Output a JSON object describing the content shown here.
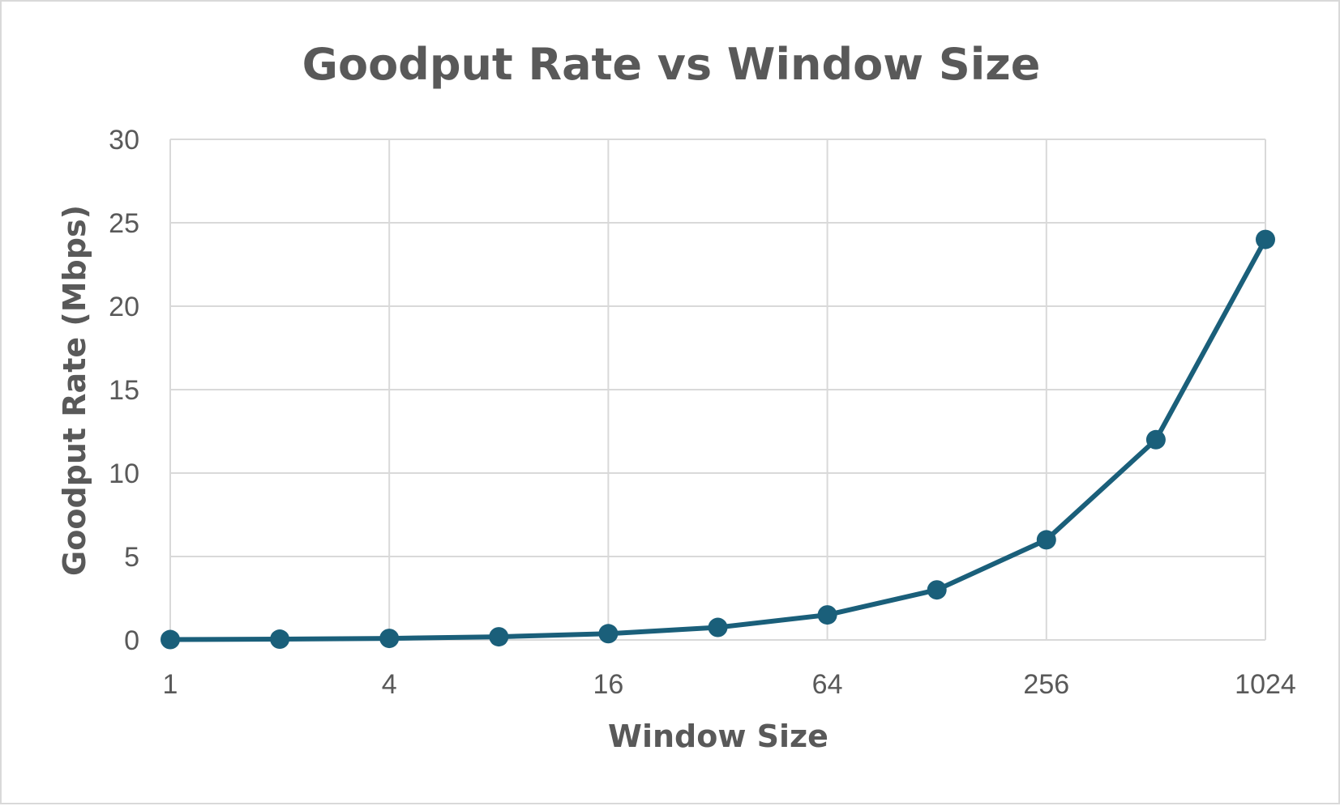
{
  "chart_data": {
    "type": "line",
    "title": "Goodput Rate vs Window Size",
    "xlabel": "Window Size",
    "ylabel": "Goodput Rate (Mbps)",
    "x_scale": "log2",
    "xlim": [
      1,
      1024
    ],
    "ylim": [
      0,
      30
    ],
    "x_ticks": [
      "1",
      "4",
      "16",
      "64",
      "256",
      "1024"
    ],
    "y_ticks": [
      "0",
      "5",
      "10",
      "15",
      "20",
      "25",
      "30"
    ],
    "grid": true,
    "legend": "none",
    "x": [
      1,
      2,
      4,
      8,
      16,
      32,
      64,
      128,
      256,
      512,
      1024
    ],
    "series": [
      {
        "values": [
          0.023,
          0.047,
          0.094,
          0.19,
          0.375,
          0.75,
          1.5,
          3.0,
          6.0,
          12.0,
          24.0
        ],
        "color": "#1a5f7a"
      }
    ]
  }
}
